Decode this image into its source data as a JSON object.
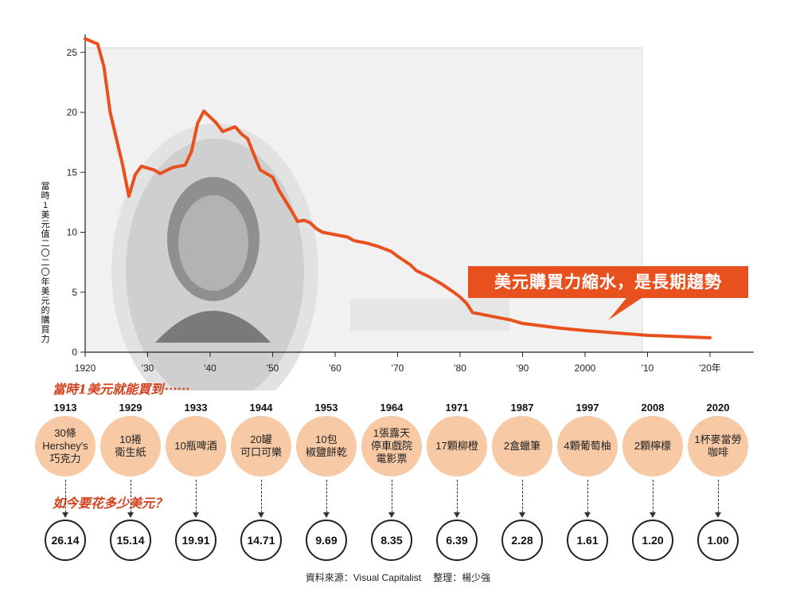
{
  "chart_data": {
    "type": "line",
    "x_tick_labels": [
      "1920",
      "'30",
      "'40",
      "'50",
      "'60",
      "'70",
      "'80",
      "'90",
      "2000",
      "'10",
      "'20年"
    ],
    "y_ticks": [
      0,
      5,
      10,
      15,
      20,
      25
    ],
    "ylim": [
      0,
      26.5
    ],
    "xlim": [
      1920,
      2027
    ],
    "ylabel": "當時1美元值二〇二〇年美元的購買力",
    "x": [
      1920,
      1922,
      1923,
      1924,
      1926,
      1927,
      1928,
      1929,
      1931,
      1932,
      1934,
      1936,
      1937,
      1938,
      1939,
      1941,
      1942,
      1944,
      1945,
      1946,
      1948,
      1950,
      1951,
      1953,
      1954,
      1955,
      1956,
      1957,
      1958,
      1960,
      1962,
      1963,
      1965,
      1967,
      1968,
      1969,
      1970,
      1972,
      1973,
      1975,
      1977,
      1979,
      1980,
      1981,
      1982,
      1984,
      1986,
      1988,
      1990,
      1993,
      1996,
      2000,
      2005,
      2010,
      2015,
      2020
    ],
    "values": [
      26.14,
      25.7,
      23.8,
      20.0,
      15.6,
      13.0,
      14.8,
      15.5,
      15.2,
      14.9,
      15.4,
      15.6,
      16.7,
      19.1,
      20.1,
      19.1,
      18.4,
      18.8,
      18.2,
      17.8,
      15.2,
      14.6,
      13.5,
      11.8,
      10.9,
      11.0,
      10.8,
      10.3,
      10.0,
      9.8,
      9.6,
      9.3,
      9.1,
      8.8,
      8.6,
      8.4,
      8.0,
      7.3,
      6.8,
      6.3,
      5.7,
      5.0,
      4.6,
      4.1,
      3.3,
      3.1,
      2.9,
      2.7,
      2.4,
      2.2,
      2.0,
      1.8,
      1.6,
      1.4,
      1.3,
      1.2
    ],
    "annotation": "美元購買力縮水，是長期趨勢",
    "line_color": "#e8501e",
    "grid": false
  },
  "section_title": "當時1美元就能買到⋯⋯",
  "question_title": "如今要花多少美元？",
  "items": [
    {
      "year": "1913",
      "item": "30條\nHershey's\n巧克力",
      "price": "26.14"
    },
    {
      "year": "1929",
      "item": "10捲\n衛生紙",
      "price": "15.14"
    },
    {
      "year": "1933",
      "item": "10瓶啤酒",
      "price": "19.91"
    },
    {
      "year": "1944",
      "item": "20罐\n可口可樂",
      "price": "14.71"
    },
    {
      "year": "1953",
      "item": "10包\n椒鹽餅乾",
      "price": "9.69"
    },
    {
      "year": "1964",
      "item": "1張露天\n停車戲院\n電影票",
      "price": "8.35"
    },
    {
      "year": "1971",
      "item": "17顆柳橙",
      "price": "6.39"
    },
    {
      "year": "1987",
      "item": "2盒蠟筆",
      "price": "2.28"
    },
    {
      "year": "1997",
      "item": "4顆葡萄柚",
      "price": "1.61"
    },
    {
      "year": "2008",
      "item": "2顆檸檬",
      "price": "1.20"
    },
    {
      "year": "2020",
      "item": "1杯麥當勞\n咖啡",
      "price": "1.00"
    }
  ],
  "source": "資料來源：Visual Capitalist　 整理：楊少強",
  "colors": {
    "accent": "#e8501e",
    "circle_fill": "#f7c9a4",
    "title_red": "#d2421c"
  }
}
